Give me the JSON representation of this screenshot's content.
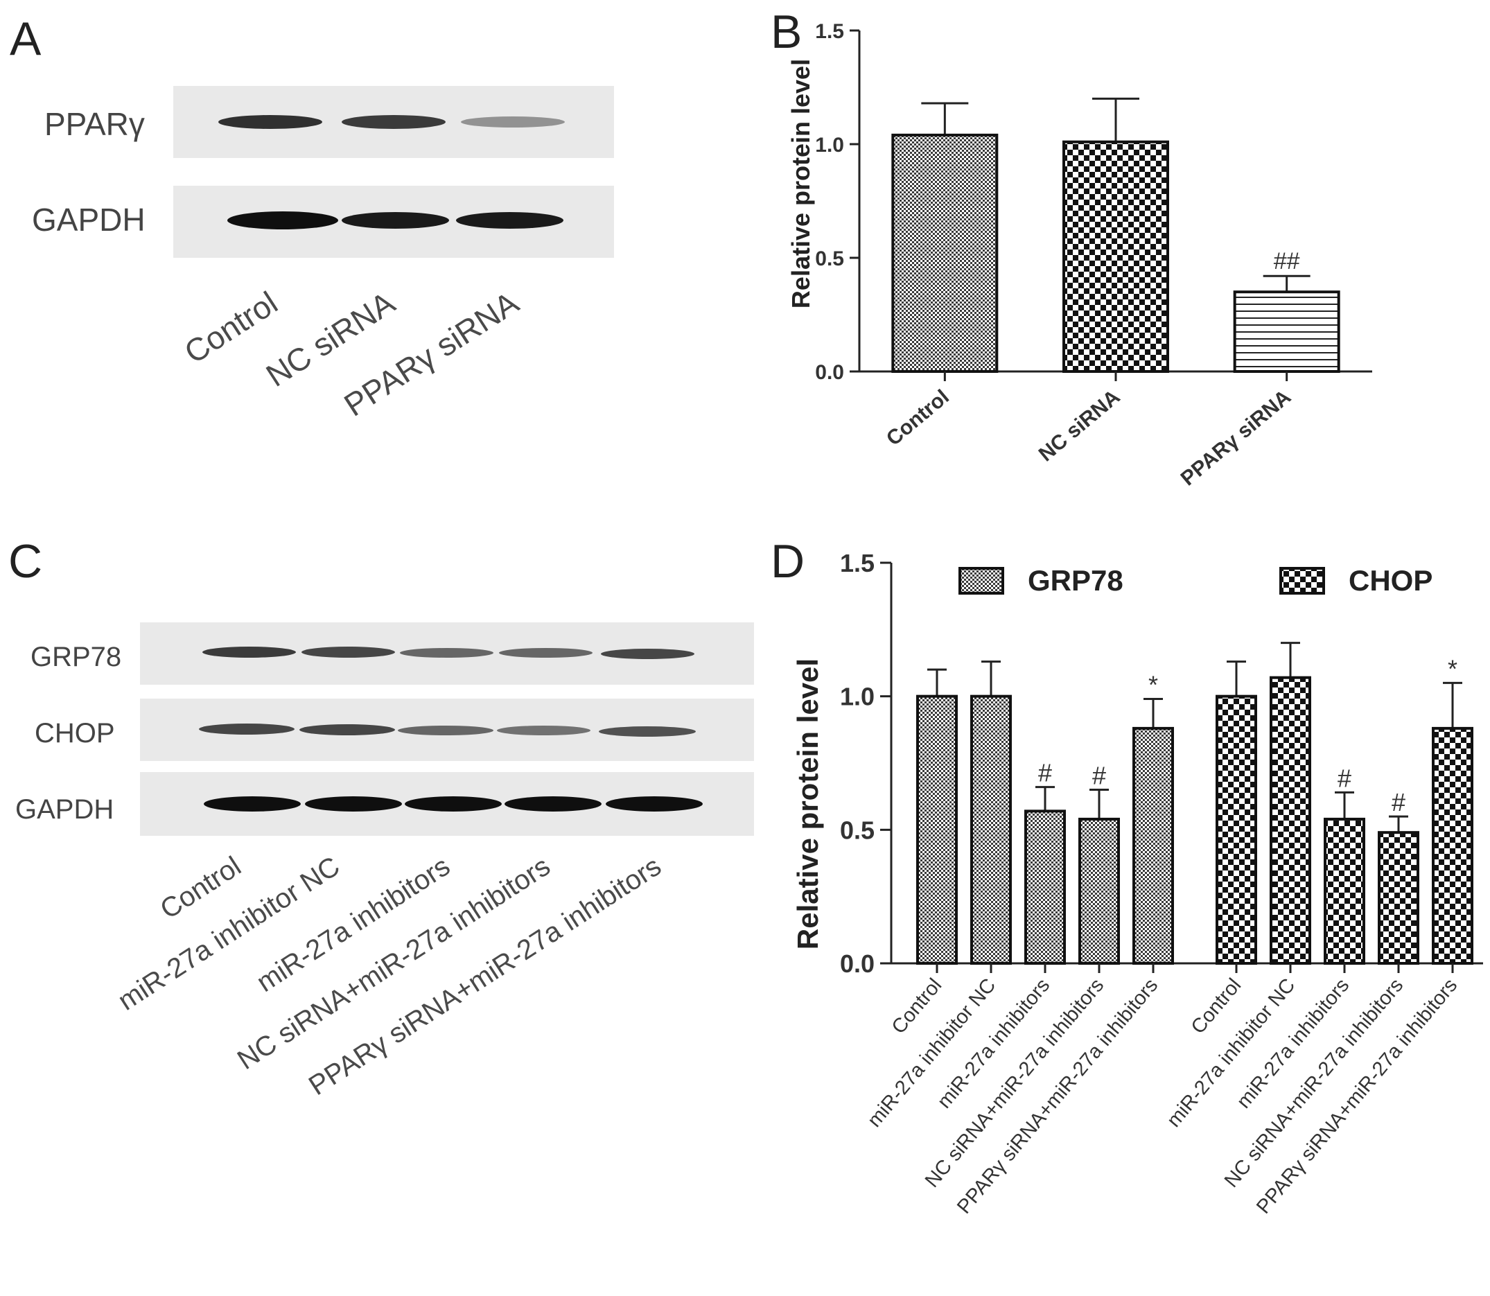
{
  "panels": {
    "a": "A",
    "b": "B",
    "c": "C",
    "d": "D"
  },
  "blot_a": {
    "rows": [
      {
        "label": "PPARγ",
        "intensity": [
          0.85,
          0.8,
          0.4
        ]
      },
      {
        "label": "GAPDH",
        "intensity": [
          1.0,
          0.95,
          0.95
        ]
      }
    ],
    "lanes": [
      "Control",
      "NC siRNA",
      "PPARγ siRNA"
    ]
  },
  "blot_c": {
    "rows": [
      {
        "label": "GRP78",
        "intensity": [
          0.8,
          0.75,
          0.6,
          0.6,
          0.75
        ]
      },
      {
        "label": "CHOP",
        "intensity": [
          0.75,
          0.75,
          0.6,
          0.55,
          0.7
        ]
      },
      {
        "label": "GAPDH",
        "intensity": [
          1.0,
          1.0,
          1.0,
          1.0,
          1.0
        ]
      }
    ],
    "lanes": [
      "Control",
      "miR-27a inhibitor  NC",
      "miR-27a inhibitors",
      "NC siRNA+miR-27a inhibitors",
      "PPARγ siRNA+miR-27a inhibitors"
    ]
  },
  "chart_data": [
    {
      "type": "bar",
      "ylabel": "Relative protein level",
      "ylim": [
        0,
        1.5
      ],
      "yticks": [
        "0.0",
        "0.5",
        "1.0",
        "1.5"
      ],
      "categories": [
        "Control",
        "NC siRNA",
        "PPARγ siRNA"
      ],
      "values": [
        1.04,
        1.01,
        0.35
      ],
      "errors": [
        0.14,
        0.19,
        0.07
      ],
      "annotations": [
        "",
        "",
        "##"
      ],
      "patterns": [
        "fine",
        "checker",
        "hlines"
      ]
    },
    {
      "type": "bar",
      "ylabel": "Relative protein level",
      "ylim": [
        0,
        1.5
      ],
      "yticks": [
        "0.0",
        "0.5",
        "1.0",
        "1.5"
      ],
      "categories": [
        "Control",
        "miR-27a inhibitor  NC",
        "miR-27a inhibitors",
        "NC siRNA+miR-27a inhibitors",
        "PPARγ siRNA+miR-27a inhibitors"
      ],
      "legend_position": "top",
      "series": [
        {
          "name": "GRP78",
          "pattern": "fine",
          "values": [
            1.0,
            1.0,
            0.57,
            0.54,
            0.88
          ],
          "errors": [
            0.1,
            0.13,
            0.09,
            0.11,
            0.11
          ],
          "annotations": [
            "",
            "",
            "#",
            "#",
            "*"
          ]
        },
        {
          "name": "CHOP",
          "pattern": "checker",
          "values": [
            1.0,
            1.07,
            0.54,
            0.49,
            0.88
          ],
          "errors": [
            0.13,
            0.13,
            0.1,
            0.06,
            0.17
          ],
          "annotations": [
            "",
            "",
            "#",
            "#",
            "*"
          ]
        }
      ]
    }
  ]
}
